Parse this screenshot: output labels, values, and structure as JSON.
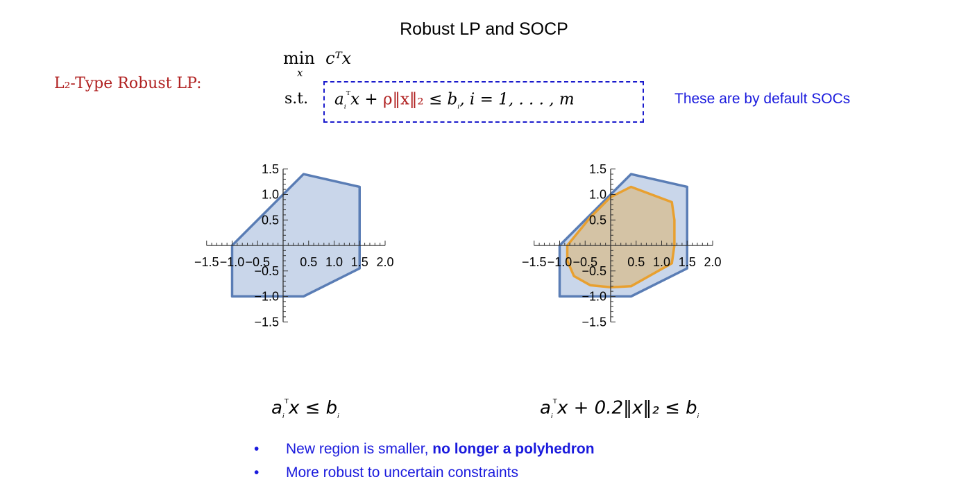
{
  "title": "Robust LP and SOCP",
  "formulation": {
    "label": "L₂-Type Robust LP:",
    "objective_min": "min",
    "objective_var": "x",
    "objective_expr": "cᵀx",
    "st": "s.t.",
    "constraint_parts": [
      "a",
      "ᵢ",
      "ᵀ",
      "x + ",
      "ρ‖x‖₂",
      " ≤ b",
      "ᵢ",
      ", i = 1, . . . , m"
    ]
  },
  "note": "These are by default SOCs",
  "plots": [
    {
      "caption_parts": [
        "a",
        "ᵢ",
        "ᵀ",
        "x ≤ b",
        "ᵢ"
      ],
      "x_ticks": [
        "−1.5",
        "−1.0",
        "−0.5",
        "0.5",
        "1.0",
        "1.5",
        "2.0"
      ],
      "y_ticks": [
        "1.5",
        "1.0",
        "0.5",
        "−0.5",
        "−1.0",
        "−1.5"
      ],
      "xlim": [
        -1.5,
        2.0
      ],
      "ylim": [
        -1.5,
        1.5
      ],
      "polyhedron": [
        [
          -1.0,
          0.0
        ],
        [
          0.4,
          1.4
        ],
        [
          1.5,
          1.15
        ],
        [
          1.5,
          -0.45
        ],
        [
          0.4,
          -1.0
        ],
        [
          -1.0,
          -1.0
        ]
      ],
      "robust_region": null,
      "fill_color": "#c9d6ea",
      "stroke_color": "#5a7db5"
    },
    {
      "caption_parts": [
        "a",
        "ᵢ",
        "ᵀ",
        "x + 0.2‖x‖₂ ≤ b",
        "ᵢ"
      ],
      "x_ticks": [
        "−1.5",
        "−1.0",
        "−0.5",
        "0.5",
        "1.0",
        "1.5",
        "2.0"
      ],
      "y_ticks": [
        "1.5",
        "1.0",
        "0.5",
        "−0.5",
        "−1.0",
        "−1.5"
      ],
      "xlim": [
        -1.5,
        2.0
      ],
      "ylim": [
        -1.5,
        1.5
      ],
      "polyhedron": [
        [
          -1.0,
          0.0
        ],
        [
          0.4,
          1.4
        ],
        [
          1.5,
          1.15
        ],
        [
          1.5,
          -0.45
        ],
        [
          0.4,
          -1.0
        ],
        [
          -1.0,
          -1.0
        ]
      ],
      "robust_region": [
        [
          -0.85,
          0.0
        ],
        [
          -0.4,
          0.55
        ],
        [
          0.0,
          0.95
        ],
        [
          0.4,
          1.15
        ],
        [
          1.2,
          0.85
        ],
        [
          1.25,
          0.5
        ],
        [
          1.25,
          0.0
        ],
        [
          1.2,
          -0.35
        ],
        [
          0.4,
          -0.8
        ],
        [
          0.0,
          -0.82
        ],
        [
          -0.4,
          -0.78
        ],
        [
          -0.72,
          -0.6
        ],
        [
          -0.85,
          -0.3
        ]
      ],
      "fill_color": "#c9d6ea",
      "stroke_color": "#5a7db5",
      "robust_fill": "#d6bf99",
      "robust_stroke": "#e8a030"
    }
  ],
  "bullets": [
    {
      "dot": "•",
      "text": "New region is smaller, ",
      "bold": "no longer a polyhedron"
    },
    {
      "dot": "•",
      "text": "More robust to uncertain constraints",
      "bold": ""
    }
  ]
}
